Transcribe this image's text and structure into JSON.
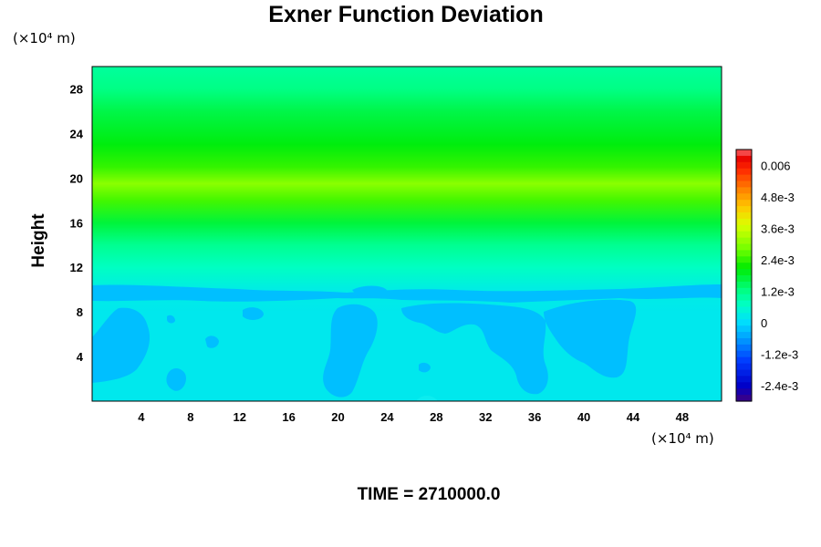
{
  "chart_data": {
    "type": "heatmap",
    "title": "Exner Function Deviation",
    "ylabel": "Height",
    "x_unit": "(×10⁴ m)",
    "y_unit": "(×10⁴ m)",
    "xlim": [
      0,
      51.2
    ],
    "ylim": [
      0,
      30
    ],
    "x_ticks": [
      "4",
      "8",
      "12",
      "16",
      "20",
      "24",
      "28",
      "32",
      "36",
      "40",
      "44",
      "48"
    ],
    "y_ticks": [
      "4",
      "8",
      "12",
      "16",
      "20",
      "24",
      "28"
    ],
    "colorbar": {
      "range": [
        -0.003,
        0.0066
      ],
      "labels": [
        "0.006",
        "4.8e-3",
        "3.6e-3",
        "2.4e-3",
        "1.2e-3",
        "0",
        "-1.2e-3",
        "-2.4e-3"
      ]
    },
    "profile": [
      {
        "z": 0.5,
        "value": 0.0002
      },
      {
        "z": 4,
        "value": 0.0002
      },
      {
        "z": 8,
        "value": 0.0002
      },
      {
        "z": 10,
        "value": 0.0003
      },
      {
        "z": 12,
        "value": 0.0007
      },
      {
        "z": 14,
        "value": 0.0011
      },
      {
        "z": 16,
        "value": 0.0017
      },
      {
        "z": 18,
        "value": 0.0025
      },
      {
        "z": 19.5,
        "value": 0.003
      },
      {
        "z": 21,
        "value": 0.0024
      },
      {
        "z": 23,
        "value": 0.002
      },
      {
        "z": 26,
        "value": 0.0016
      },
      {
        "z": 28,
        "value": 0.0012
      },
      {
        "z": 30,
        "value": 0.001
      }
    ]
  },
  "footer": {
    "time_label": "TIME = 2710000.0"
  }
}
